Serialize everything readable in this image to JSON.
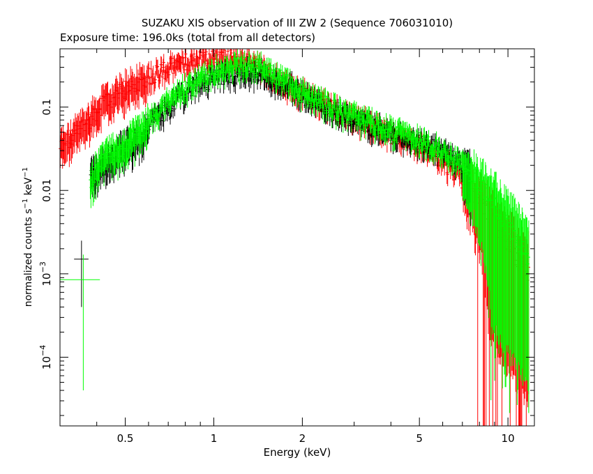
{
  "chart_data": {
    "type": "scatter",
    "title": "SUZAKU XIS observation of III ZW 2 (Sequence 706031010)",
    "subtitle": "Exposure time: 196.0ks (total from all detectors)",
    "xlabel": "Energy (keV)",
    "ylabel_main": "normalized counts s",
    "ylabel_sup1": "−1",
    "ylabel_mid": " keV",
    "ylabel_sup2": "−1",
    "x_scale": "log",
    "y_scale": "log",
    "xlim": [
      0.3,
      12.3
    ],
    "ylim": [
      1.5e-05,
      0.5
    ],
    "grid": false,
    "x_ticks": [
      {
        "value": 0.5,
        "label": "0.5"
      },
      {
        "value": 1,
        "label": "1"
      },
      {
        "value": 2,
        "label": "2"
      },
      {
        "value": 5,
        "label": "5"
      },
      {
        "value": 10,
        "label": "10"
      }
    ],
    "y_ticks": [
      {
        "value": 0.1,
        "base": "0.1",
        "exp": ""
      },
      {
        "value": 0.01,
        "base": "0.01",
        "exp": ""
      },
      {
        "value": 0.001,
        "base": "10",
        "exp": "−3"
      },
      {
        "value": 0.0001,
        "base": "10",
        "exp": "−4"
      }
    ],
    "series": [
      {
        "color": "#ff0000",
        "x": [
          0.3,
          0.32,
          0.34,
          0.36,
          0.38,
          0.4,
          0.42,
          0.45,
          0.48,
          0.52,
          0.56,
          0.6,
          0.65,
          0.7,
          0.76,
          0.82,
          0.9,
          0.98,
          1.06,
          1.15,
          1.25,
          1.35,
          1.45,
          1.55,
          1.7,
          1.85,
          2.0,
          2.2,
          2.4,
          2.7,
          3.0,
          3.4,
          3.8,
          4.2,
          4.7,
          5.2,
          5.8,
          6.4,
          7.0,
          7.6,
          8.2,
          8.8,
          9.5,
          10.2,
          11.0,
          11.8
        ],
        "y": [
          0.035,
          0.04,
          0.05,
          0.06,
          0.075,
          0.09,
          0.11,
          0.13,
          0.15,
          0.18,
          0.21,
          0.24,
          0.27,
          0.3,
          0.33,
          0.36,
          0.38,
          0.39,
          0.4,
          0.39,
          0.37,
          0.34,
          0.3,
          0.25,
          0.2,
          0.17,
          0.15,
          0.13,
          0.11,
          0.09,
          0.075,
          0.062,
          0.052,
          0.044,
          0.037,
          0.031,
          0.025,
          0.019,
          0.014,
          0.01,
          0.007,
          0.0045,
          0.003,
          0.002,
          0.0013,
          0.001
        ]
      },
      {
        "color": "#000000",
        "x": [
          0.38,
          0.4,
          0.42,
          0.45,
          0.48,
          0.52,
          0.56,
          0.6,
          0.65,
          0.7,
          0.76,
          0.82,
          0.9,
          0.98,
          1.06,
          1.15,
          1.25,
          1.35,
          1.45,
          1.55,
          1.7,
          1.85,
          2.0,
          2.2,
          2.4,
          2.7,
          3.0,
          3.4,
          3.8,
          4.2,
          4.7,
          5.2,
          5.8,
          6.4,
          7.0,
          7.5
        ],
        "y": [
          0.015,
          0.017,
          0.02,
          0.025,
          0.03,
          0.035,
          0.045,
          0.06,
          0.08,
          0.1,
          0.13,
          0.16,
          0.19,
          0.22,
          0.24,
          0.25,
          0.26,
          0.26,
          0.25,
          0.23,
          0.2,
          0.17,
          0.14,
          0.12,
          0.1,
          0.085,
          0.07,
          0.06,
          0.052,
          0.046,
          0.041,
          0.036,
          0.031,
          0.026,
          0.02,
          0.016
        ]
      },
      {
        "color": "#00ff00",
        "x": [
          0.38,
          0.4,
          0.42,
          0.45,
          0.48,
          0.52,
          0.56,
          0.6,
          0.65,
          0.7,
          0.76,
          0.82,
          0.9,
          0.98,
          1.06,
          1.15,
          1.25,
          1.35,
          1.45,
          1.55,
          1.7,
          1.85,
          2.0,
          2.2,
          2.4,
          2.7,
          3.0,
          3.4,
          3.8,
          4.2,
          4.7,
          5.2,
          5.8,
          6.4,
          7.0,
          7.6,
          8.2,
          8.8,
          9.5,
          10.2,
          11.0,
          11.8
        ],
        "y": [
          0.014,
          0.018,
          0.024,
          0.028,
          0.033,
          0.04,
          0.052,
          0.068,
          0.09,
          0.12,
          0.15,
          0.18,
          0.22,
          0.26,
          0.29,
          0.31,
          0.32,
          0.32,
          0.3,
          0.27,
          0.22,
          0.18,
          0.15,
          0.13,
          0.11,
          0.09,
          0.076,
          0.065,
          0.057,
          0.05,
          0.044,
          0.038,
          0.032,
          0.026,
          0.02,
          0.015,
          0.011,
          0.008,
          0.005,
          0.0035,
          0.0022,
          0.0015
        ]
      }
    ],
    "outliers": [
      {
        "color": "#000000",
        "x": 0.355,
        "y": 0.0015,
        "xerr": [
          0.335,
          0.375
        ],
        "yerr": [
          0.0004,
          0.0025
        ]
      },
      {
        "color": "#00ff00",
        "x": 0.36,
        "y": 0.00085,
        "xerr": [
          0.3,
          0.41
        ],
        "yerr": [
          4e-05,
          0.0017
        ]
      }
    ]
  }
}
